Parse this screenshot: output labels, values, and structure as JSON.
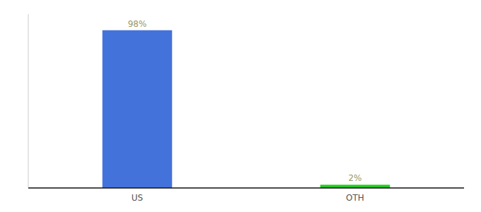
{
  "chart_data": {
    "type": "bar",
    "categories": [
      "US",
      "OTH"
    ],
    "values": [
      98,
      2
    ],
    "value_labels": [
      "98%",
      "2%"
    ],
    "colors": [
      "#4472db",
      "#22cc22"
    ],
    "ylim": [
      0,
      108
    ],
    "yticks": [],
    "data_labels": true,
    "tick_labels": "x"
  }
}
